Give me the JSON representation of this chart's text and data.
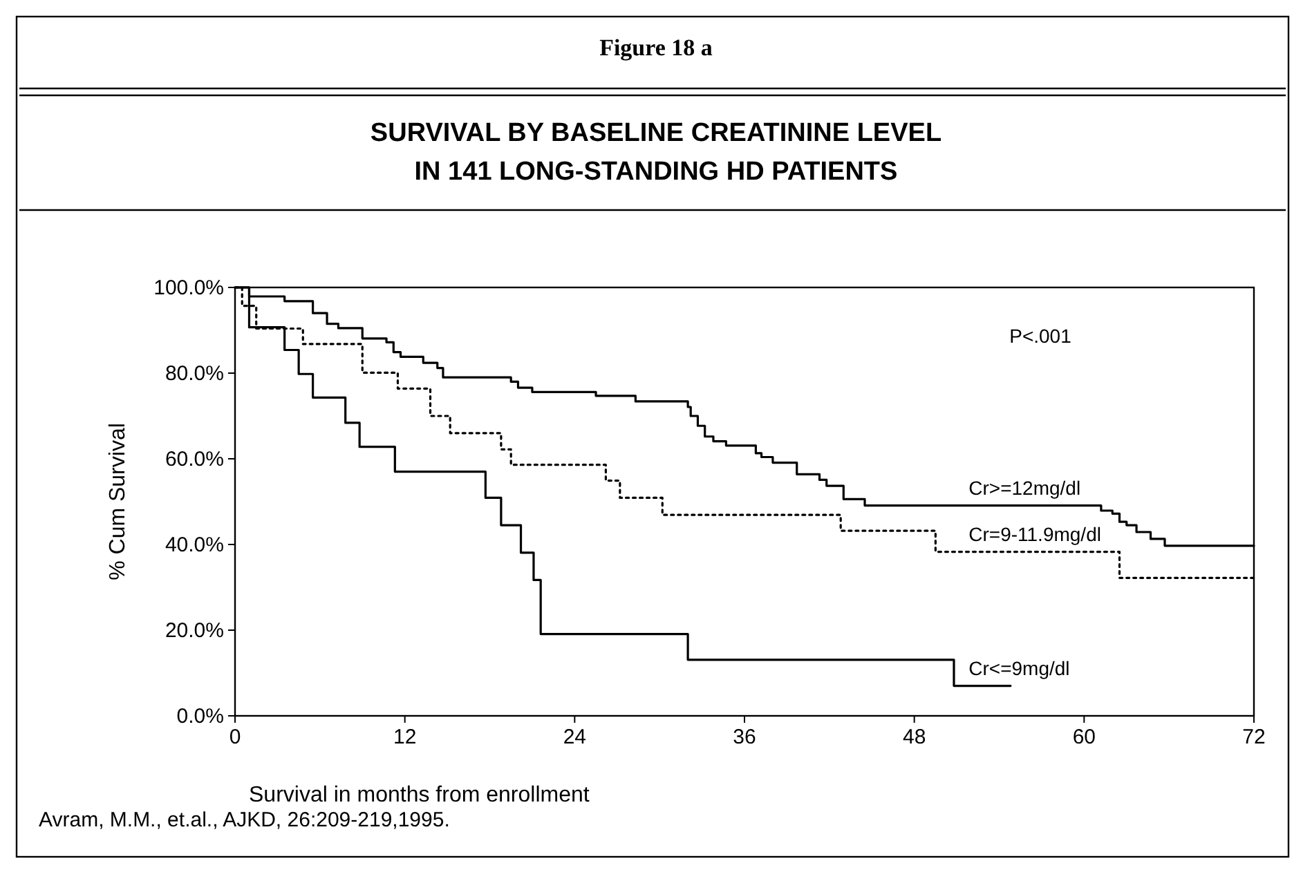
{
  "chart_data": {
    "type": "step",
    "title": "SURVIVAL BY BASELINE CREATININE LEVEL IN 141 LONG-STANDING HD PATIENTS",
    "xlabel": "Survival in months from enrollment",
    "ylabel": "% Cum Survival",
    "annotations": [
      "Figure 18 a",
      "P<.001",
      "Avram, M.M., et.al., AJKD, 26:209-219,1995."
    ],
    "xlim": [
      0,
      72
    ],
    "xticks": [
      0,
      12,
      24,
      36,
      48,
      60,
      72
    ],
    "ylim": [
      0,
      100
    ],
    "yticks": [
      {
        "value": 0,
        "label": "0.0%"
      },
      {
        "value": 20,
        "label": "20.0%"
      },
      {
        "value": 40,
        "label": "40.0%"
      },
      {
        "value": 60,
        "label": "60.0%"
      },
      {
        "value": 80,
        "label": "80.0%"
      },
      {
        "value": 100,
        "label": "100.0%"
      }
    ],
    "grid": false,
    "marker": "none",
    "series": [
      {
        "name": "Cr>=12mg/dl",
        "color": "#000000",
        "line_style": "solid",
        "x": [
          0,
          1,
          3.5,
          5.5,
          6.5,
          7.3,
          9,
          10.7,
          11.2,
          11.7,
          13.3,
          14.3,
          14.7,
          19.5,
          20,
          21,
          25.5,
          28.3,
          32,
          32.2,
          32.7,
          33.2,
          33.8,
          34.7,
          36.8,
          37.2,
          38,
          39.7,
          41.3,
          41.8,
          43,
          44.5,
          61.2,
          62,
          62.5,
          63,
          63.7,
          64.7,
          65.7,
          72
        ],
        "values": [
          100,
          97.9,
          96.8,
          94,
          91.5,
          90.5,
          88.1,
          87.2,
          84.9,
          83.8,
          82.4,
          81.2,
          79,
          78,
          76.6,
          75.6,
          74.7,
          73.4,
          72.1,
          70,
          67.7,
          65.2,
          64.1,
          63.1,
          61.3,
          60.4,
          59.1,
          56.4,
          55.1,
          53.7,
          50.6,
          49.1,
          47.9,
          47.2,
          45.3,
          44.5,
          42.9,
          41.3,
          39.7,
          39.7
        ]
      },
      {
        "name": "Cr=9-11.9mg/dl",
        "color": "#000000",
        "line_style": "dotted",
        "x": [
          0,
          0.5,
          1.5,
          4.8,
          9,
          11.5,
          13.8,
          15.2,
          18.8,
          19.5,
          26.2,
          27.2,
          30.2,
          42.8,
          49.5,
          62.5,
          72
        ],
        "values": [
          100,
          95.7,
          90.4,
          86.8,
          80.1,
          76.4,
          70,
          66,
          62.2,
          58.6,
          54.9,
          50.9,
          46.9,
          43.2,
          38.3,
          32.2,
          32.2
        ]
      },
      {
        "name": "Cr<=9mg/dl",
        "color": "#000000",
        "line_style": "solid",
        "x": [
          0,
          1,
          3.5,
          4.5,
          5.5,
          7.8,
          8.8,
          11.3,
          17.7,
          18.8,
          20.2,
          21.1,
          21.6,
          32,
          50.8,
          54.8
        ],
        "values": [
          100,
          90.7,
          85.4,
          79.8,
          74.3,
          68.4,
          62.8,
          57,
          50.9,
          44.5,
          38.1,
          31.7,
          19.1,
          13.1,
          7,
          7
        ]
      }
    ]
  }
}
